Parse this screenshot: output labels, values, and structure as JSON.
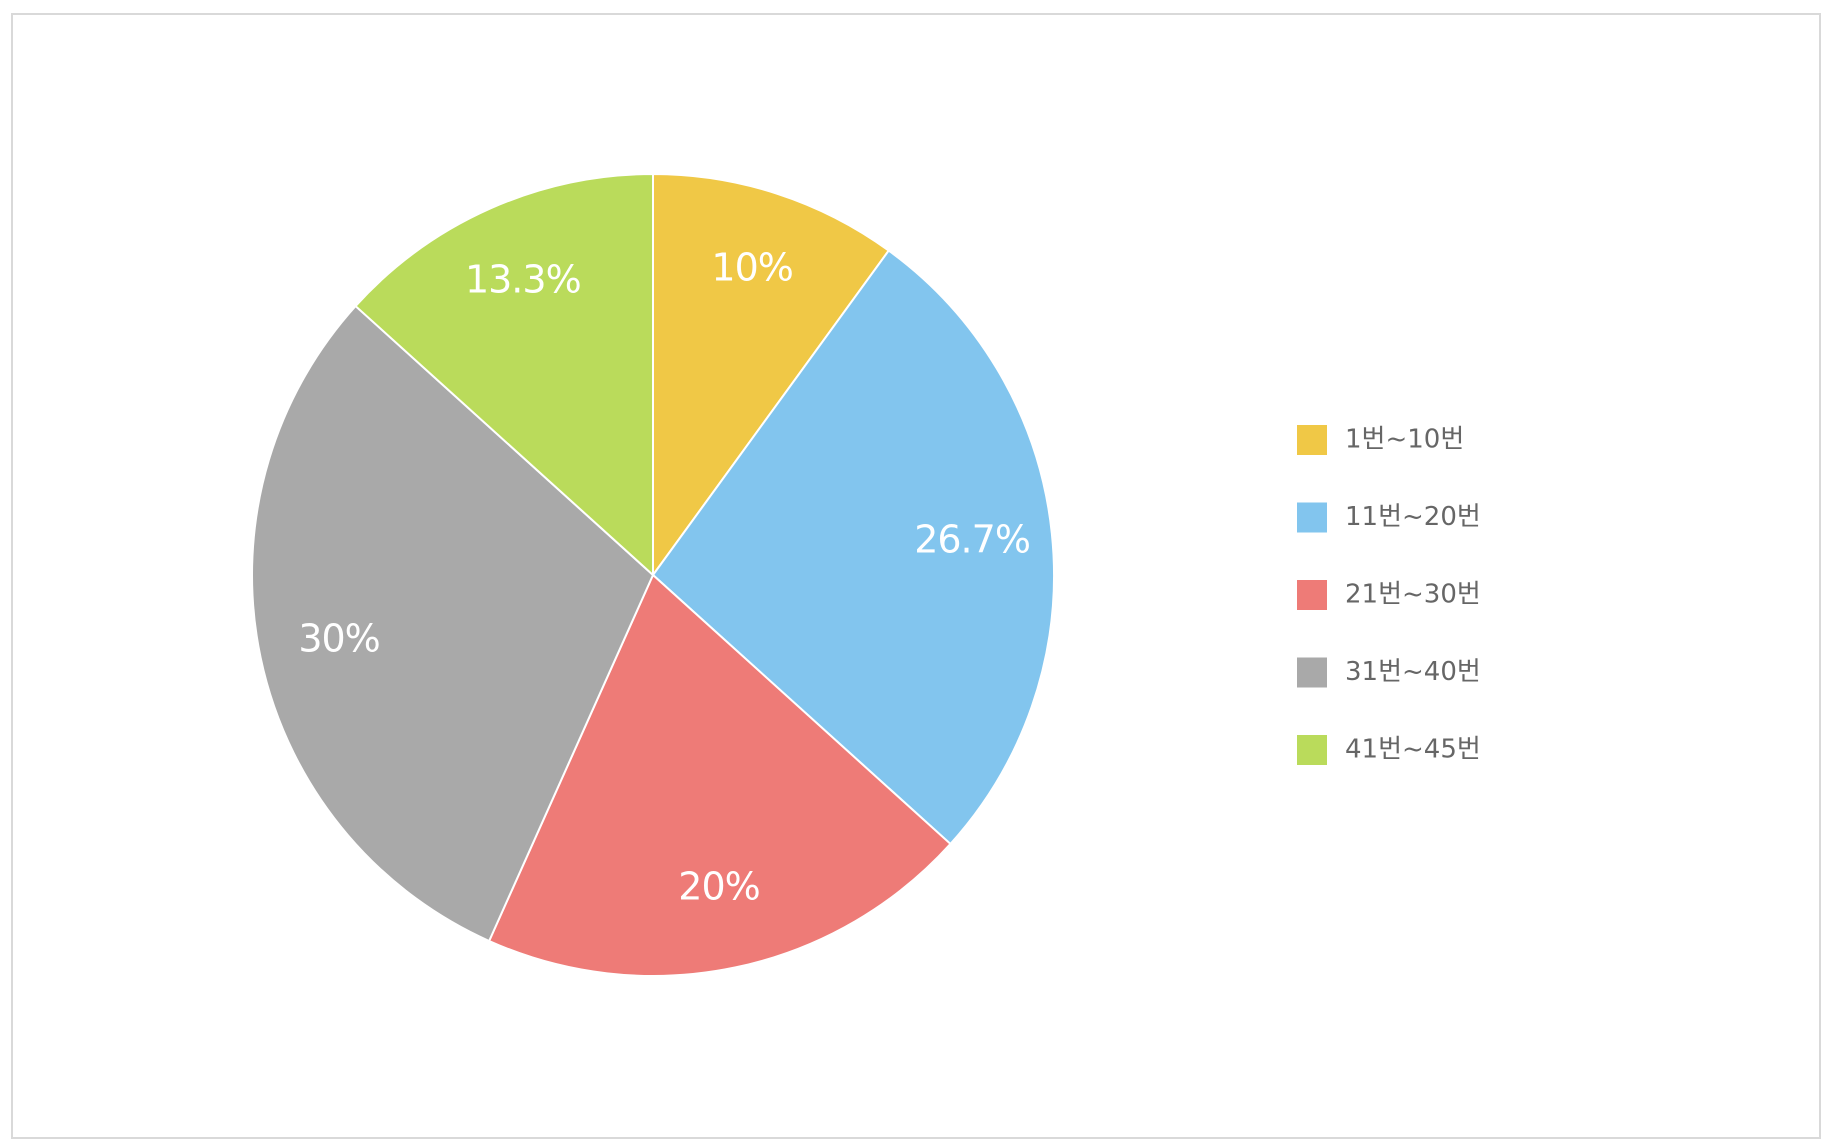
{
  "chart_data": {
    "type": "pie",
    "categories": [
      "1번~10번",
      "11번~20번",
      "21번~30번",
      "31번~40번",
      "41번~45번"
    ],
    "values": [
      10,
      26.7,
      20,
      30,
      13.3
    ],
    "value_labels": [
      "10%",
      "26.7%",
      "20%",
      "30%",
      "13.3%"
    ],
    "colors": [
      "#f0c846",
      "#82c5ee",
      "#ee7b77",
      "#a9a9a9",
      "#badb5b"
    ],
    "legend": "right"
  }
}
